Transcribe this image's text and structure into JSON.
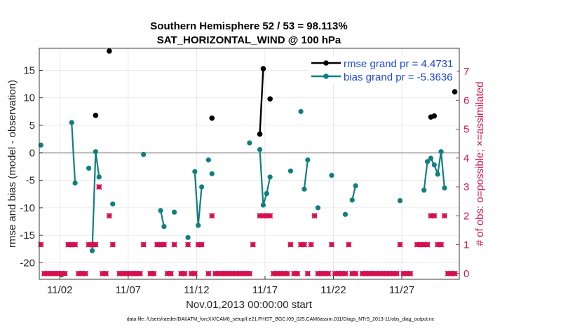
{
  "chart_data": {
    "type": "line",
    "title": "Southern Hemisphere 52 / 53 = 98.113%",
    "subtitle": "SAT_HORIZONTAL_WIND @ 100 hPa",
    "xlabel": "Nov.01,2013 00:00:00 start",
    "ylabel": "rmse and bias (model - observation)",
    "y2label": "# of obs: o=possible; ×=assimilated",
    "footnote": "data file: /Users/raeder/DAI/ATM_forcXX/CAM6_setup/f.e21.FHIST_BGC.f09_025.CAM6assim.011/Diags_NTrS_2013-11/obs_diag_output.nc",
    "xlim": [
      0.5,
      31.2
    ],
    "ylim": [
      -23,
      19
    ],
    "y2lim": [
      -0.2,
      7.8
    ],
    "x_tick_values": [
      2,
      7,
      12,
      17,
      22,
      27
    ],
    "x_tick_labels": [
      "11/02",
      "11/07",
      "11/12",
      "11/17",
      "11/22",
      "11/27"
    ],
    "y_ticks": [
      -20,
      -15,
      -10,
      -5,
      0,
      5,
      10,
      15
    ],
    "y2_ticks": [
      0,
      1,
      2,
      3,
      4,
      5,
      6,
      7
    ],
    "grid": true,
    "zero_line": 0,
    "legend": {
      "position": "top-right",
      "entries": [
        {
          "label": "rmse grand pr = 4.4731",
          "color": "#000000"
        },
        {
          "label": "bias grand pr = -5.3636",
          "color": "#0f7f7f"
        }
      ]
    },
    "colors": {
      "rmse": "#000000",
      "bias": "#0f7f7f",
      "obs": "#d6114f",
      "zero_line": "#b5b5b5",
      "legend_text": "#1f48d8"
    },
    "series": [
      {
        "name": "rmse",
        "segments": [
          [
            [
              4.62,
              6.8
            ]
          ],
          [
            [
              5.62,
              18.5
            ]
          ],
          [
            [
              13.12,
              6.3
            ]
          ],
          [
            [
              16.62,
              3.4
            ],
            [
              16.87,
              15.3
            ]
          ],
          [
            [
              17.37,
              9.8
            ]
          ],
          [
            [
              29.12,
              6.5
            ],
            [
              29.37,
              6.7
            ]
          ],
          [
            [
              30.87,
              11.1
            ]
          ]
        ]
      },
      {
        "name": "bias",
        "segments": [
          [
            [
              0.62,
              1.4
            ]
          ],
          [
            [
              2.12,
              -22.2
            ]
          ],
          [
            [
              2.87,
              5.5
            ],
            [
              3.12,
              -5.5
            ]
          ],
          [
            [
              4.12,
              -2.8
            ]
          ],
          [
            [
              4.37,
              -17.8
            ],
            [
              4.62,
              0.2
            ],
            [
              4.87,
              -4.4
            ]
          ],
          [
            [
              5.87,
              -9.3
            ]
          ],
          [
            [
              8.12,
              -0.3
            ]
          ],
          [
            [
              9.37,
              -10.5
            ],
            [
              9.62,
              -13.4
            ]
          ],
          [
            [
              10.37,
              -10.8
            ]
          ],
          [
            [
              11.37,
              -15.4
            ]
          ],
          [
            [
              11.87,
              -3.4
            ],
            [
              12.12,
              -13.2
            ],
            [
              12.37,
              -6.2
            ]
          ],
          [
            [
              12.87,
              -1.3
            ]
          ],
          [
            [
              13.12,
              -3.8
            ]
          ],
          [
            [
              15.87,
              1.8
            ]
          ],
          [
            [
              16.62,
              0.6
            ],
            [
              16.87,
              -9.5
            ],
            [
              17.12,
              -7.4
            ],
            [
              17.37,
              -4.4
            ]
          ],
          [
            [
              18.87,
              -3.3
            ]
          ],
          [
            [
              19.62,
              7.5
            ]
          ],
          [
            [
              19.87,
              -6.6
            ],
            [
              20.12,
              -1.3
            ]
          ],
          [
            [
              20.87,
              -10.0
            ]
          ],
          [
            [
              21.87,
              -4.1
            ]
          ],
          [
            [
              22.87,
              -11.2
            ]
          ],
          [
            [
              23.37,
              -8.6
            ],
            [
              23.62,
              -6.0
            ]
          ],
          [
            [
              26.87,
              -8.7
            ]
          ],
          [
            [
              28.62,
              -6.8
            ],
            [
              28.87,
              -1.6
            ],
            [
              29.12,
              -1.0
            ],
            [
              29.37,
              -2.2
            ],
            [
              29.62,
              -3.9
            ],
            [
              29.87,
              0.2
            ],
            [
              30.12,
              -6.4
            ]
          ]
        ]
      }
    ],
    "obs_possible": [
      [
        0.62,
        1
      ],
      [
        0.87,
        0
      ],
      [
        1.12,
        0
      ],
      [
        1.37,
        0
      ],
      [
        1.62,
        0
      ],
      [
        1.87,
        0
      ],
      [
        2.12,
        0
      ],
      [
        2.37,
        0
      ],
      [
        2.62,
        1
      ],
      [
        2.87,
        1
      ],
      [
        3.12,
        1
      ],
      [
        3.37,
        0
      ],
      [
        3.62,
        0
      ],
      [
        3.87,
        0
      ],
      [
        4.12,
        1
      ],
      [
        4.37,
        1
      ],
      [
        4.62,
        1
      ],
      [
        4.87,
        3
      ],
      [
        5.12,
        0
      ],
      [
        5.37,
        0
      ],
      [
        5.62,
        2
      ],
      [
        5.87,
        1
      ],
      [
        6.37,
        0
      ],
      [
        6.62,
        0
      ],
      [
        6.87,
        0
      ],
      [
        7.12,
        0
      ],
      [
        7.37,
        0
      ],
      [
        7.62,
        0
      ],
      [
        7.87,
        0
      ],
      [
        8.12,
        1
      ],
      [
        8.62,
        0
      ],
      [
        8.87,
        0
      ],
      [
        9.12,
        1
      ],
      [
        9.37,
        1
      ],
      [
        9.62,
        1
      ],
      [
        9.87,
        0
      ],
      [
        10.12,
        0
      ],
      [
        10.37,
        1
      ],
      [
        10.87,
        0
      ],
      [
        11.12,
        0
      ],
      [
        11.37,
        1
      ],
      [
        11.62,
        0
      ],
      [
        11.87,
        0
      ],
      [
        12.12,
        1
      ],
      [
        12.37,
        1
      ],
      [
        12.87,
        0
      ],
      [
        13.12,
        2
      ],
      [
        13.37,
        0
      ],
      [
        13.62,
        0
      ],
      [
        13.87,
        0
      ],
      [
        14.12,
        0
      ],
      [
        14.37,
        0
      ],
      [
        14.62,
        0
      ],
      [
        14.87,
        0
      ],
      [
        15.12,
        0
      ],
      [
        15.37,
        0
      ],
      [
        15.62,
        0
      ],
      [
        15.87,
        0
      ],
      [
        16.12,
        1
      ],
      [
        16.62,
        2
      ],
      [
        16.87,
        2
      ],
      [
        17.12,
        2
      ],
      [
        17.37,
        2
      ],
      [
        17.62,
        0
      ],
      [
        17.87,
        0
      ],
      [
        18.12,
        0
      ],
      [
        18.37,
        0
      ],
      [
        18.62,
        0
      ],
      [
        18.87,
        1
      ],
      [
        19.12,
        0
      ],
      [
        19.37,
        0
      ],
      [
        19.62,
        1
      ],
      [
        19.87,
        1
      ],
      [
        20.12,
        0
      ],
      [
        20.37,
        1
      ],
      [
        20.62,
        2
      ],
      [
        20.87,
        0
      ],
      [
        21.12,
        0
      ],
      [
        21.37,
        0
      ],
      [
        21.62,
        0
      ],
      [
        21.87,
        1
      ],
      [
        22.12,
        0
      ],
      [
        22.37,
        0
      ],
      [
        22.62,
        0
      ],
      [
        22.87,
        0
      ],
      [
        23.12,
        1
      ],
      [
        23.37,
        0
      ],
      [
        23.62,
        0
      ],
      [
        24.12,
        0
      ],
      [
        24.37,
        0
      ],
      [
        24.62,
        0
      ],
      [
        24.87,
        0
      ],
      [
        25.12,
        0
      ],
      [
        25.37,
        0
      ],
      [
        25.62,
        0
      ],
      [
        25.87,
        0
      ],
      [
        26.12,
        0
      ],
      [
        26.37,
        0
      ],
      [
        26.62,
        0
      ],
      [
        26.87,
        1
      ],
      [
        27.12,
        0
      ],
      [
        27.37,
        0
      ],
      [
        27.62,
        0
      ],
      [
        28.12,
        1
      ],
      [
        28.37,
        1
      ],
      [
        28.62,
        1
      ],
      [
        28.87,
        1
      ],
      [
        29.12,
        2
      ],
      [
        29.37,
        2
      ],
      [
        29.62,
        1
      ],
      [
        29.87,
        1
      ],
      [
        30.12,
        2
      ],
      [
        30.37,
        0
      ],
      [
        30.62,
        0
      ],
      [
        30.87,
        0
      ]
    ]
  }
}
